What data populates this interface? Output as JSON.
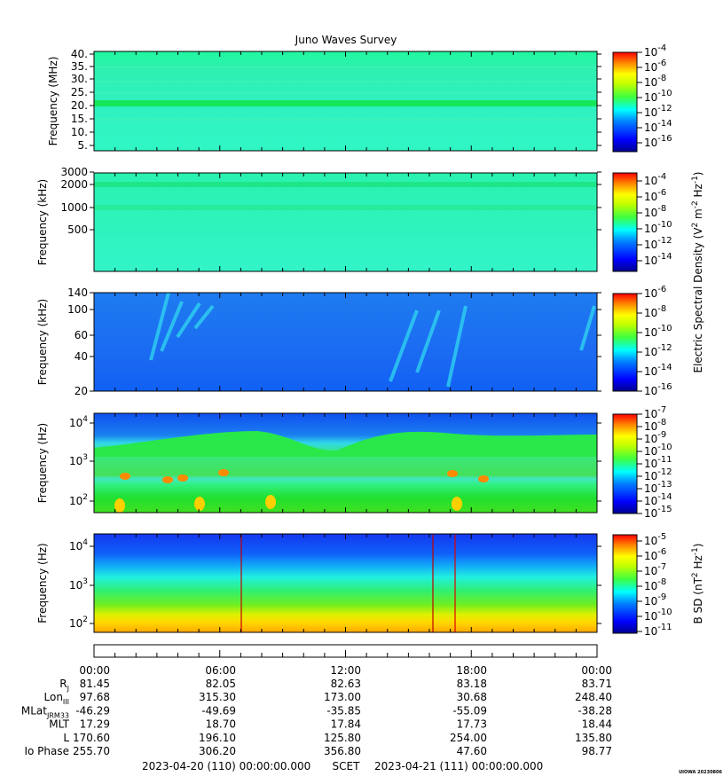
{
  "title": "Juno Waves Survey",
  "watermark": "UIOWA 20230806",
  "colors": {
    "jet": [
      "#00008f",
      "#0000ff",
      "#007fff",
      "#00ffff",
      "#7fff7f",
      "#ffff00",
      "#ff7f00",
      "#ff0000",
      "#7f0000"
    ]
  },
  "panels": [
    {
      "id": "p1",
      "ylabel": "Frequency (MHz)",
      "yticks": [
        "40.",
        "35.",
        "30.",
        "25.",
        "20.",
        "15.",
        "10.",
        "5."
      ],
      "cbar_ticks": [
        {
          "base": "10",
          "exp": "-4"
        },
        {
          "base": "10",
          "exp": "-6"
        },
        {
          "base": "10",
          "exp": "-8"
        },
        {
          "base": "10",
          "exp": "-10"
        },
        {
          "base": "10",
          "exp": "-12"
        },
        {
          "base": "10",
          "exp": "-14"
        },
        {
          "base": "10",
          "exp": "-16"
        }
      ]
    },
    {
      "id": "p2",
      "ylabel": "Frequency (kHz)",
      "yticks": [
        "3000",
        "2000",
        "1000",
        "500"
      ],
      "cbar_ticks": [
        {
          "base": "10",
          "exp": "-4"
        },
        {
          "base": "10",
          "exp": "-6"
        },
        {
          "base": "10",
          "exp": "-8"
        },
        {
          "base": "10",
          "exp": "-10"
        },
        {
          "base": "10",
          "exp": "-12"
        },
        {
          "base": "10",
          "exp": "-14"
        }
      ]
    },
    {
      "id": "p3",
      "ylabel": "Frequency (kHz)",
      "yticks": [
        "140",
        "100",
        "60",
        "40",
        "20"
      ],
      "cbar_ticks": [
        {
          "base": "10",
          "exp": "-6"
        },
        {
          "base": "10",
          "exp": "-8"
        },
        {
          "base": "10",
          "exp": "-10"
        },
        {
          "base": "10",
          "exp": "-12"
        },
        {
          "base": "10",
          "exp": "-14"
        },
        {
          "base": "10",
          "exp": "-16"
        }
      ]
    },
    {
      "id": "p4",
      "ylabel": "Frequency (Hz)",
      "yticks": [
        {
          "base": "10",
          "exp": "4"
        },
        {
          "base": "10",
          "exp": "3"
        },
        {
          "base": "10",
          "exp": "2"
        }
      ],
      "cbar_ticks": [
        {
          "base": "10",
          "exp": "-7"
        },
        {
          "base": "10",
          "exp": "-8"
        },
        {
          "base": "10",
          "exp": "-9"
        },
        {
          "base": "10",
          "exp": "-10"
        },
        {
          "base": "10",
          "exp": "-11"
        },
        {
          "base": "10",
          "exp": "-12"
        },
        {
          "base": "10",
          "exp": "-13"
        },
        {
          "base": "10",
          "exp": "-14"
        },
        {
          "base": "10",
          "exp": "-15"
        }
      ]
    },
    {
      "id": "p5",
      "ylabel": "Frequency (Hz)",
      "yticks": [
        {
          "base": "10",
          "exp": "4"
        },
        {
          "base": "10",
          "exp": "3"
        },
        {
          "base": "10",
          "exp": "2"
        }
      ],
      "cbar_ticks": [
        {
          "base": "10",
          "exp": "-5"
        },
        {
          "base": "10",
          "exp": "-6"
        },
        {
          "base": "10",
          "exp": "-7"
        },
        {
          "base": "10",
          "exp": "-8"
        },
        {
          "base": "10",
          "exp": "-9"
        },
        {
          "base": "10",
          "exp": "-10"
        },
        {
          "base": "10",
          "exp": "-11"
        }
      ]
    }
  ],
  "cbar_label_e": {
    "pre": "Electric Spectral Density (V",
    "sup1": "2",
    "mid": " m",
    "sup2": "-2",
    "mid2": " Hz",
    "sup3": "-1",
    "post": ")"
  },
  "cbar_label_b": {
    "pre": "B SD (nT",
    "sup1": "2",
    "mid": " Hz",
    "sup2": "-1",
    "post": ")"
  },
  "chart_data": {
    "type": "heatmap",
    "title": "Juno Waves Survey",
    "x": [
      "00:00",
      "06:00",
      "12:00",
      "18:00",
      "00:00"
    ],
    "ephemeris": [
      {
        "label": "R",
        "sub": "J",
        "values": [
          "81.45",
          "82.05",
          "82.63",
          "83.18",
          "83.71"
        ]
      },
      {
        "label": "Lon",
        "sub": "III",
        "values": [
          "97.68",
          "315.30",
          "173.00",
          "30.68",
          "248.40"
        ]
      },
      {
        "label": "MLat",
        "sub": "JRM33",
        "values": [
          "-46.29",
          "-49.69",
          "-35.85",
          "-55.09",
          "-38.28"
        ]
      },
      {
        "label": "MLT",
        "sub": "",
        "values": [
          "17.29",
          "18.70",
          "17.84",
          "17.73",
          "18.44"
        ]
      },
      {
        "label": "L",
        "sub": "",
        "values": [
          "170.60",
          "196.10",
          "125.80",
          "254.00",
          "135.80"
        ]
      },
      {
        "label": "Io Phase",
        "sub": "",
        "values": [
          "255.70",
          "306.20",
          "356.80",
          "47.60",
          "98.77"
        ]
      }
    ],
    "scet": {
      "start": "2023-04-20 (110) 00:00:00.000",
      "label": "SCET",
      "end": "2023-04-21 (111) 00:00:00.000"
    }
  }
}
